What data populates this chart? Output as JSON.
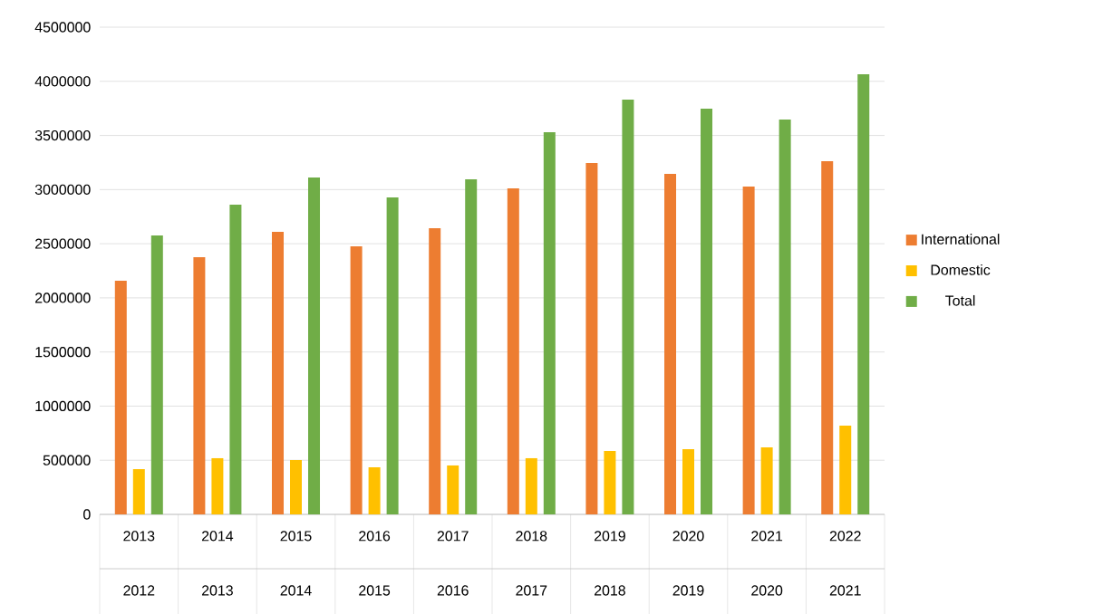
{
  "chart_data": {
    "type": "bar",
    "categories": [
      "2013",
      "2014",
      "2015",
      "2016",
      "2017",
      "2018",
      "2019",
      "2020",
      "2021",
      "2022"
    ],
    "annotations": [
      "2012",
      "2013",
      "2014",
      "2015",
      "2016",
      "2017",
      "2018",
      "2019",
      "2020",
      "2021"
    ],
    "series": [
      {
        "name": "International",
        "color": "#ed7d31",
        "values": [
          2158000,
          2375000,
          2610000,
          2476000,
          2643000,
          3011000,
          3245000,
          3145000,
          3028000,
          3262000
        ]
      },
      {
        "name": "Domestic",
        "color": "#ffc000",
        "values": [
          418000,
          519000,
          502000,
          435000,
          452000,
          519000,
          585000,
          602000,
          619000,
          820000
        ]
      },
      {
        "name": "Total",
        "color": "#70ad47",
        "values": [
          2576000,
          2861000,
          3111000,
          2927000,
          3095000,
          3530000,
          3831000,
          3747000,
          3647000,
          4065000
        ]
      }
    ],
    "ylim": [
      0,
      4500000
    ],
    "yticks": [
      0,
      500000,
      1000000,
      1500000,
      2000000,
      2500000,
      3000000,
      3500000,
      4000000,
      4500000
    ],
    "grid": "y",
    "legend": "right"
  }
}
